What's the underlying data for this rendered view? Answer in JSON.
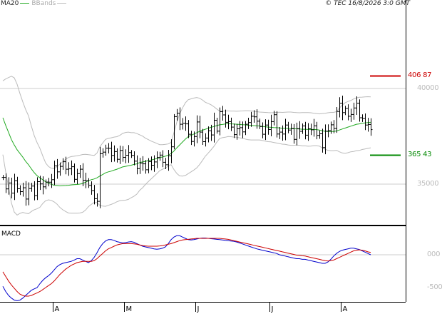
{
  "legend": {
    "ma_label": "MA20",
    "bb_label": "BBands",
    "colors": {
      "ma": "#22aa22",
      "bbands": "#bbbbbb"
    }
  },
  "copyright": "© TEC 16/8/2026 3:0 GMT",
  "macd_label": "MACD",
  "chart_data": [
    {
      "type": "ohlc",
      "y_axis": {
        "ticks": [
          350,
          400
        ],
        "tick_labels": [
          "35000",
          "40000"
        ],
        "ylim": [
          337,
          423
        ]
      },
      "x_axis": {
        "month_labels": [
          "A",
          "M",
          "J",
          "J",
          "A"
        ],
        "month_start_index": [
          18,
          43,
          68,
          94,
          119
        ]
      },
      "levels": [
        {
          "label": "406 87",
          "value": 406.87,
          "color": "#cc0000"
        },
        {
          "label": "365 43",
          "value": 365.43,
          "color": "#008800"
        }
      ],
      "close": [
        353.5,
        347.5,
        350.6,
        345.3,
        351.8,
        347.6,
        346.1,
        348.1,
        342.2,
        347.7,
        349.0,
        344.0,
        351.3,
        350.1,
        348.6,
        351.1,
        351.0,
        352.3,
        359.5,
        356.4,
        359.3,
        361.7,
        357.8,
        358.0,
        359.1,
        352.5,
        355.5,
        357.8,
        352.0,
        351.8,
        349.3,
        346.6,
        342.4,
        341.0,
        365.9,
        366.7,
        368.8,
        368.7,
        365.0,
        367.0,
        363.0,
        367.6,
        364.0,
        365.1,
        366.5,
        365.0,
        362.0,
        358.1,
        361.0,
        360.6,
        357.5,
        361.8,
        359.9,
        361.6,
        363.9,
        365.2,
        361.4,
        360.1,
        364.8,
        369.5,
        385.3,
        387.1,
        381.3,
        381.8,
        381.5,
        376.1,
        372.3,
        374.9,
        382.5,
        377.2,
        372.2,
        374.1,
        377.9,
        375.7,
        383.4,
        377.7,
        387.9,
        386.2,
        382.3,
        382.7,
        379.8,
        375.9,
        378.9,
        379.5,
        377.3,
        381.3,
        382.2,
        385.5,
        385.2,
        382.9,
        380.1,
        376.1,
        380.9,
        378.6,
        382.7,
        386.3,
        376.2,
        377.2,
        376.2,
        380.9,
        378.3,
        379.1,
        373.4,
        379.0,
        377.6,
        380.4,
        375.6,
        378.9,
        378.4,
        380.5,
        375.5,
        376.3,
        369.1,
        377.7,
        378.0,
        381.0,
        379.1,
        388.0,
        392.3,
        387.4,
        389.6,
        385.5,
        386.4,
        389.8,
        392.3,
        384.7,
        384.3,
        380.9,
        381.2,
        378.5
      ],
      "ma20": [
        384.7,
        380.7,
        377.0,
        373.3,
        370.5,
        368.0,
        366.0,
        364.1,
        361.9,
        360.1,
        358.0,
        356.0,
        354.4,
        353.3,
        352.3,
        351.2,
        350.5,
        349.9,
        349.4,
        349.3,
        349.1,
        349.2,
        349.3,
        349.4,
        349.6,
        349.7,
        349.8,
        350.0,
        350.4,
        351.0,
        351.8,
        352.3,
        352.7,
        353.3,
        354.2,
        355.0,
        355.9,
        356.4,
        356.8,
        357.3,
        357.8,
        358.4,
        359.0,
        359.3,
        359.6,
        359.9,
        360.3,
        360.6,
        361.3,
        361.6,
        361.9,
        362.3,
        362.6,
        363.0,
        363.4,
        363.8,
        364.2,
        364.6,
        365.2,
        366.0,
        367.3,
        369.0,
        370.5,
        372.0,
        373.5,
        374.8,
        375.5,
        376.2,
        376.9,
        377.6,
        378.2,
        378.7,
        379.2,
        379.7,
        380.1,
        380.6,
        381.0,
        381.2,
        381.4,
        381.6,
        381.5,
        381.4,
        381.3,
        381.2,
        381.1,
        381.0,
        380.8,
        380.7,
        380.6,
        380.5,
        380.4,
        380.2,
        380.0,
        379.8,
        379.7,
        379.6,
        379.5,
        379.4,
        379.2,
        379.2,
        379.1,
        379.0,
        378.9,
        378.9,
        378.8,
        378.7,
        378.7,
        378.6,
        378.6,
        378.6,
        378.5,
        378.3,
        377.9,
        377.6,
        377.5,
        377.5,
        377.5,
        377.8,
        378.3,
        378.8,
        379.3,
        379.8,
        380.3,
        380.8,
        381.3,
        381.5,
        381.8,
        382.0,
        382.2,
        382.3
      ],
      "bb_upper": [
        404.0,
        405.0,
        405.7,
        406.4,
        405.6,
        402.2,
        397.3,
        393.0,
        389.0,
        385.7,
        380.3,
        375.4,
        371.7,
        368.7,
        364.7,
        361.1,
        359.2,
        358.3,
        358.1,
        359.1,
        360.4,
        361.8,
        362.9,
        363.9,
        364.4,
        364.6,
        364.8,
        365.1,
        365.5,
        365.6,
        365.4,
        365.2,
        365.0,
        366.2,
        369.5,
        371.5,
        373.4,
        373.9,
        374.2,
        374.6,
        374.8,
        375.5,
        376.5,
        377.0,
        377.2,
        376.9,
        376.9,
        376.4,
        375.8,
        375.1,
        374.0,
        373.3,
        372.5,
        371.9,
        371.3,
        370.6,
        370.6,
        370.8,
        371.0,
        371.8,
        377.0,
        382.4,
        386.7,
        389.8,
        392.5,
        394.1,
        394.6,
        395.0,
        395.3,
        394.9,
        394.0,
        392.8,
        392.2,
        391.5,
        390.5,
        389.3,
        388.2,
        388.1,
        388.3,
        388.3,
        388.2,
        388.2,
        388.1,
        388.2,
        388.3,
        388.4,
        388.4,
        388.3,
        388.1,
        387.9,
        387.7,
        387.6,
        387.5,
        387.4,
        387.3,
        387.4,
        387.5,
        387.6,
        387.5,
        387.6,
        387.7,
        387.7,
        387.5,
        387.4,
        387.3,
        387.4,
        387.4,
        387.4,
        387.3,
        387.1,
        386.9,
        386.7,
        386.9,
        387.0,
        387.3,
        387.5,
        387.5,
        387.9,
        389.7,
        391.3,
        392.5,
        393.2,
        393.7,
        394.5,
        395.1,
        395.4,
        395.5,
        395.6,
        395.7,
        395.6
      ],
      "bb_lower": [
        365.4,
        356.4,
        348.3,
        340.2,
        335.4,
        333.8,
        334.7,
        335.2,
        334.8,
        334.5,
        335.7,
        336.6,
        337.1,
        337.9,
        339.9,
        341.3,
        341.8,
        341.5,
        340.7,
        339.5,
        337.8,
        336.6,
        335.7,
        334.9,
        334.8,
        334.8,
        334.8,
        334.9,
        335.3,
        336.4,
        338.2,
        339.4,
        340.4,
        340.4,
        338.9,
        338.5,
        338.4,
        338.9,
        339.4,
        340.0,
        340.8,
        341.3,
        341.5,
        341.6,
        342.0,
        342.9,
        343.7,
        344.8,
        346.8,
        348.1,
        349.8,
        351.3,
        352.7,
        354.1,
        355.5,
        357.0,
        357.8,
        358.4,
        359.4,
        360.2,
        357.6,
        355.6,
        354.3,
        354.2,
        354.5,
        355.5,
        356.4,
        357.4,
        358.5,
        360.3,
        362.4,
        364.6,
        366.2,
        367.9,
        369.7,
        371.9,
        373.8,
        374.3,
        374.5,
        374.9,
        374.8,
        374.6,
        374.5,
        374.2,
        373.9,
        373.6,
        373.2,
        373.1,
        373.1,
        373.1,
        373.1,
        372.8,
        372.5,
        372.2,
        372.1,
        371.8,
        371.5,
        371.2,
        370.9,
        370.8,
        370.5,
        370.3,
        370.3,
        370.4,
        370.3,
        370.0,
        370.0,
        369.8,
        369.9,
        370.1,
        370.1,
        369.9,
        368.9,
        368.2,
        367.7,
        367.5,
        367.5,
        367.7,
        366.9,
        366.3,
        366.1,
        366.4,
        366.9,
        367.1,
        367.5,
        367.6,
        368.1,
        368.4,
        368.7,
        369.0
      ]
    },
    {
      "type": "line",
      "title": "MACD",
      "y_axis": {
        "ticks": [
          0,
          -500
        ],
        "tick_labels": [
          "000",
          "-500"
        ],
        "ylim": [
          -850,
          500
        ]
      },
      "series": [
        {
          "color": "#0000cc",
          "values": [
            -480,
            -560,
            -620,
            -660,
            -690,
            -700,
            -690,
            -660,
            -620,
            -580,
            -540,
            -520,
            -500,
            -440,
            -390,
            -350,
            -320,
            -280,
            -230,
            -180,
            -150,
            -130,
            -120,
            -110,
            -100,
            -80,
            -60,
            -60,
            -80,
            -100,
            -120,
            -90,
            -40,
            30,
            110,
            170,
            210,
            230,
            230,
            220,
            200,
            190,
            180,
            185,
            195,
            200,
            190,
            170,
            150,
            130,
            120,
            110,
            100,
            90,
            85,
            90,
            100,
            120,
            170,
            230,
            270,
            290,
            290,
            270,
            250,
            230,
            225,
            230,
            240,
            250,
            255,
            255,
            250,
            245,
            240,
            235,
            230,
            225,
            220,
            215,
            210,
            205,
            195,
            180,
            165,
            150,
            135,
            120,
            105,
            90,
            80,
            70,
            60,
            50,
            40,
            30,
            20,
            0,
            -10,
            -20,
            -30,
            -40,
            -50,
            -60,
            -60,
            -70,
            -70,
            -80,
            -90,
            -100,
            -110,
            -120,
            -130,
            -130,
            -110,
            -70,
            -20,
            20,
            50,
            70,
            80,
            90,
            100,
            100,
            90,
            80,
            60,
            40,
            20,
            0
          ]
        },
        {
          "color": "#cc0000",
          "values": [
            -260,
            -330,
            -400,
            -460,
            -510,
            -560,
            -600,
            -620,
            -630,
            -630,
            -620,
            -600,
            -580,
            -560,
            -530,
            -500,
            -470,
            -440,
            -400,
            -350,
            -300,
            -260,
            -220,
            -190,
            -160,
            -140,
            -120,
            -110,
            -100,
            -100,
            -100,
            -100,
            -90,
            -60,
            -20,
            20,
            60,
            90,
            110,
            130,
            150,
            160,
            170,
            170,
            170,
            170,
            165,
            160,
            150,
            140,
            135,
            130,
            130,
            130,
            130,
            135,
            140,
            150,
            160,
            170,
            185,
            200,
            215,
            225,
            230,
            235,
            240,
            245,
            250,
            250,
            250,
            250,
            250,
            250,
            250,
            250,
            250,
            245,
            240,
            235,
            225,
            215,
            205,
            195,
            185,
            175,
            165,
            155,
            145,
            135,
            125,
            115,
            105,
            95,
            85,
            75,
            65,
            55,
            45,
            35,
            25,
            15,
            5,
            -5,
            -10,
            -15,
            -20,
            -30,
            -40,
            -50,
            -60,
            -70,
            -80,
            -90,
            -95,
            -90,
            -80,
            -60,
            -40,
            -20,
            0,
            20,
            40,
            60,
            70,
            75,
            70,
            60,
            45,
            35
          ]
        }
      ]
    }
  ]
}
